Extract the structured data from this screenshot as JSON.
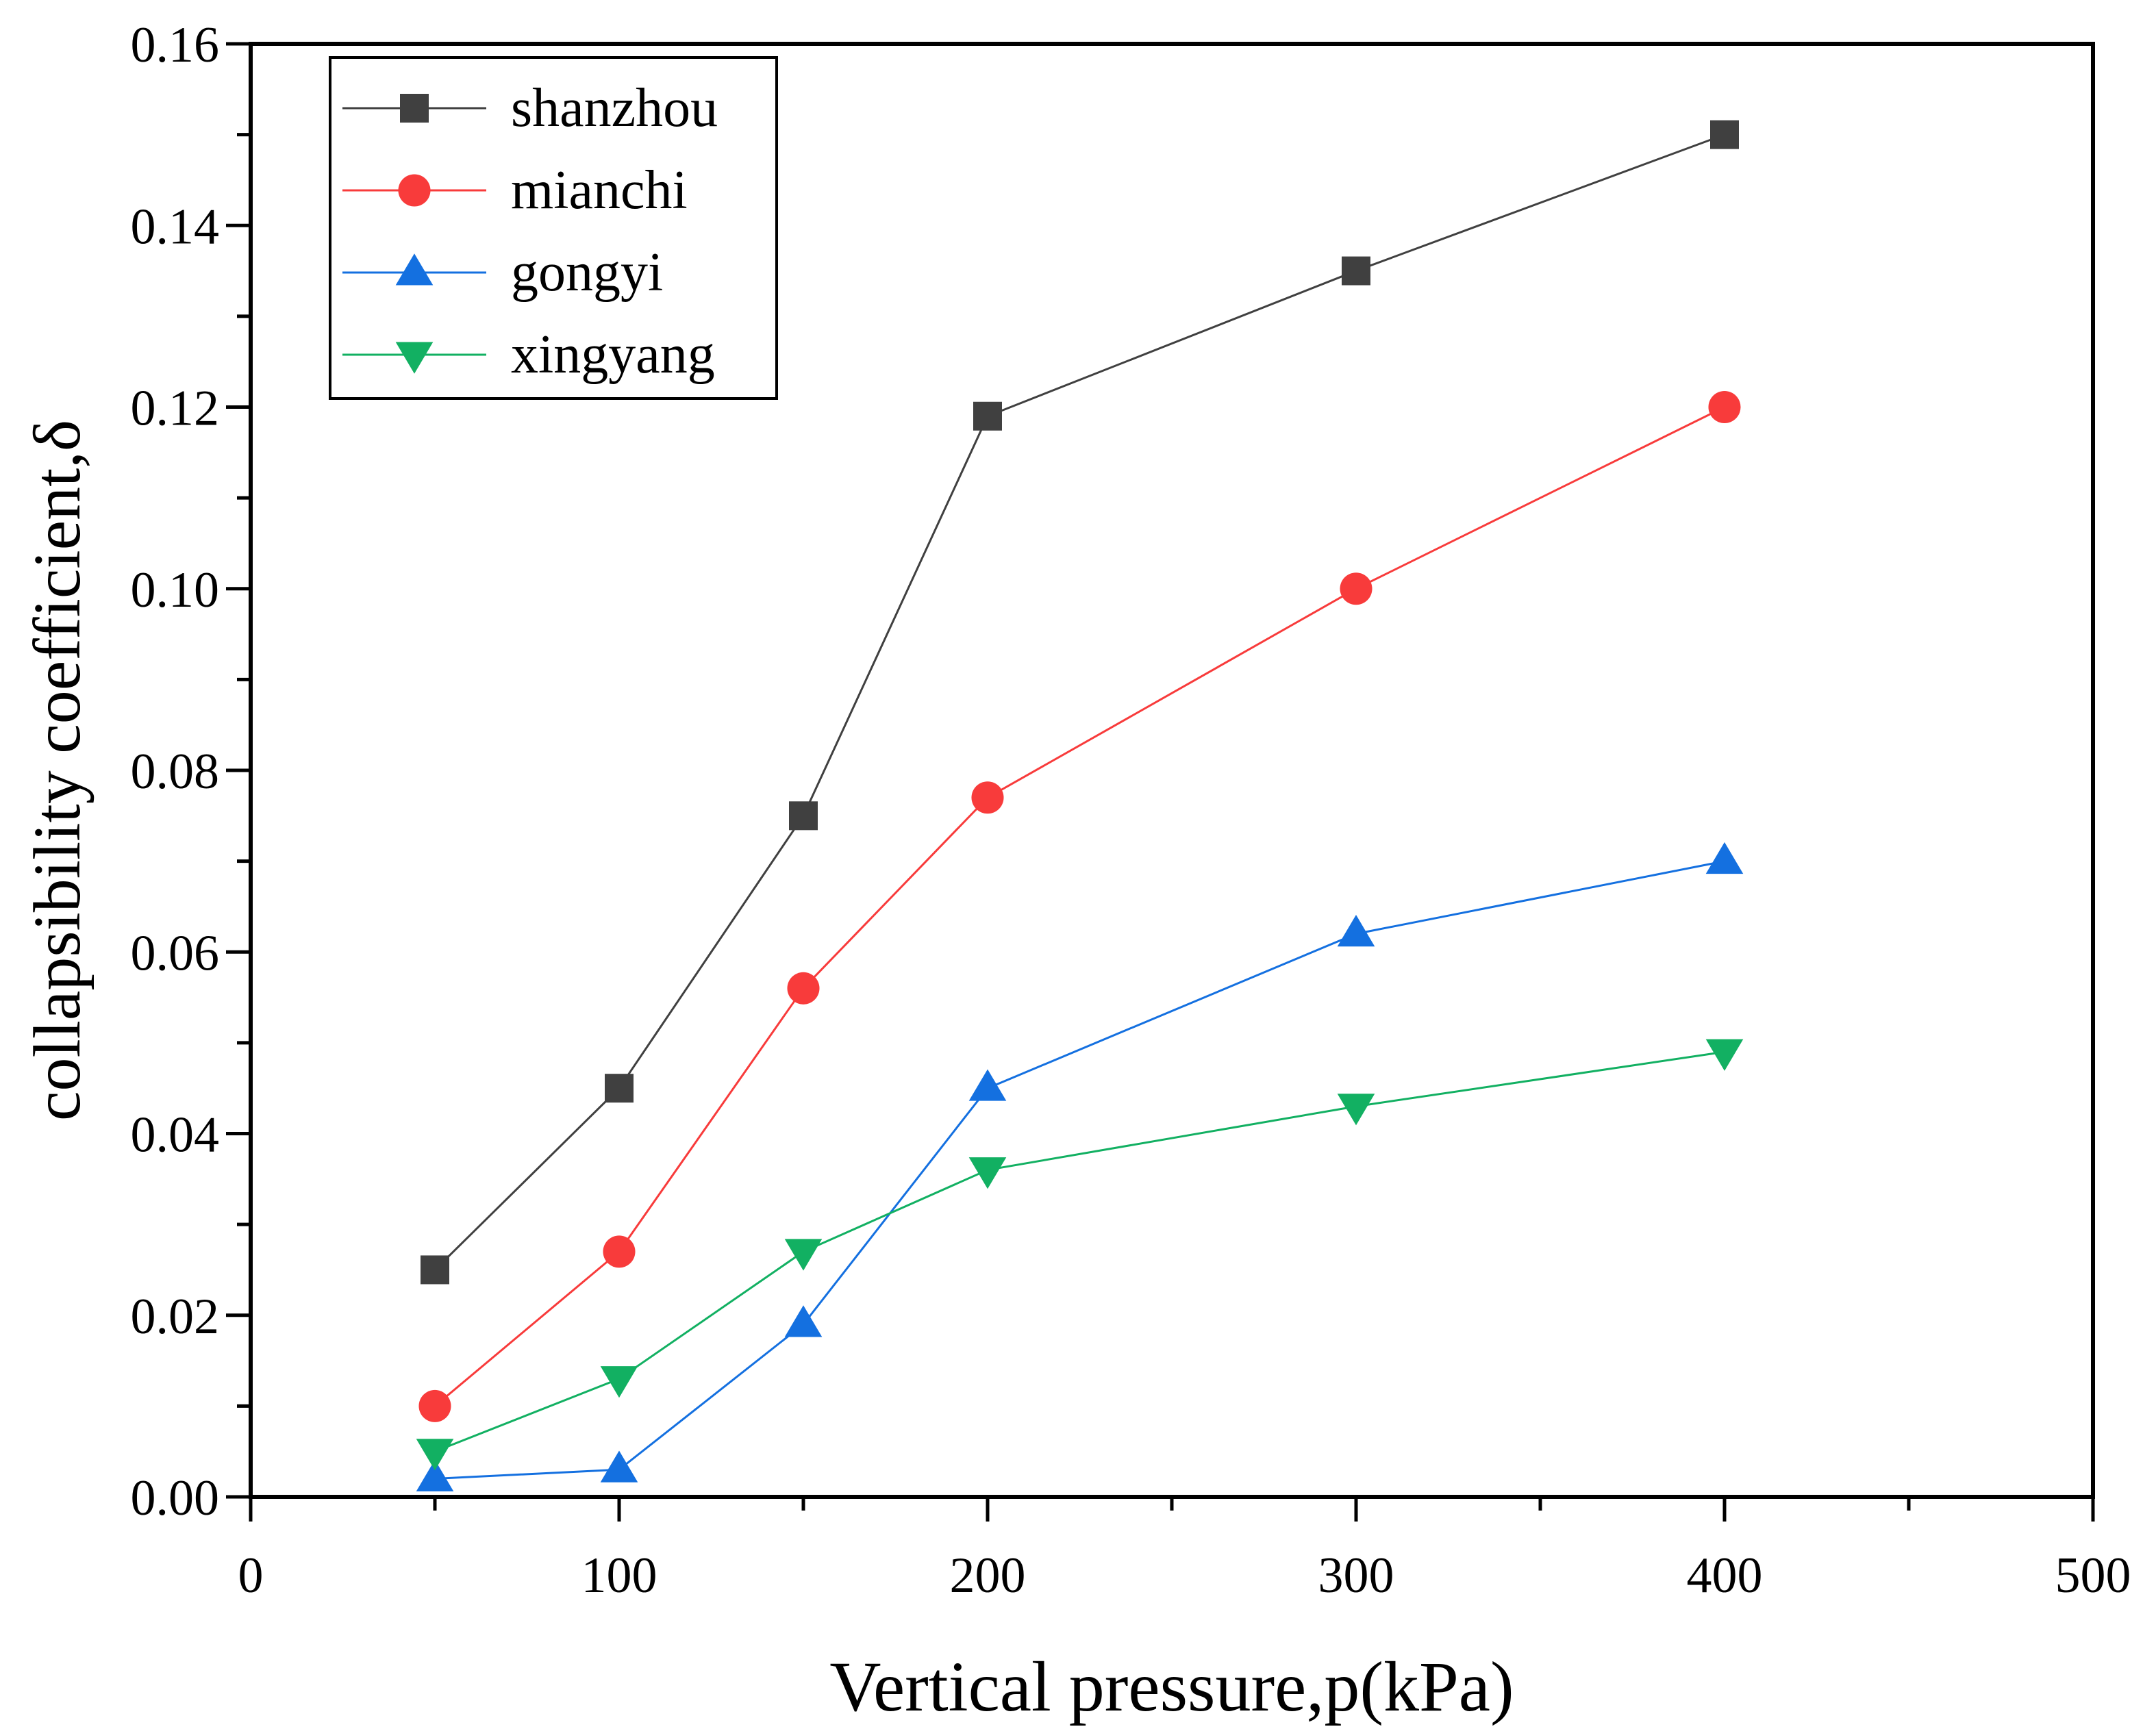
{
  "chart_data": {
    "type": "line",
    "title": "",
    "xlabel": "Vertical pressure,p(kPa)",
    "ylabel": "collapsibility coefficient,δ",
    "xlim": [
      0,
      500
    ],
    "ylim": [
      0,
      0.16
    ],
    "x_major_ticks": [
      0,
      100,
      200,
      300,
      400,
      500
    ],
    "x_tick_labels": [
      "0",
      "100",
      "200",
      "300",
      "400",
      "500"
    ],
    "x_minor_ticks": [
      50,
      150,
      250,
      350,
      450
    ],
    "y_major_ticks": [
      0,
      0.02,
      0.04,
      0.06,
      0.08,
      0.1,
      0.12,
      0.14,
      0.16
    ],
    "y_tick_labels": [
      "0.00",
      "0.02",
      "0.04",
      "0.06",
      "0.08",
      "0.10",
      "0.12",
      "0.14",
      "0.16"
    ],
    "y_minor_ticks": [
      0.01,
      0.03,
      0.05,
      0.07,
      0.09,
      0.11,
      0.13,
      0.15
    ],
    "grid": false,
    "legend_position": "top-left",
    "x": [
      50,
      100,
      150,
      200,
      300,
      400
    ],
    "series": [
      {
        "name": "shanzhou",
        "color": "#404040",
        "marker": "square",
        "values": [
          0.025,
          0.045,
          0.075,
          0.119,
          0.135,
          0.15
        ]
      },
      {
        "name": "mianchi",
        "color": "#f83b3b",
        "marker": "circle",
        "values": [
          0.01,
          0.027,
          0.056,
          0.077,
          0.1,
          0.12
        ]
      },
      {
        "name": "gongyi",
        "color": "#1470e0",
        "marker": "triangle-up",
        "values": [
          0.002,
          0.003,
          0.019,
          0.045,
          0.062,
          0.07
        ]
      },
      {
        "name": "xingyang",
        "color": "#12b062",
        "marker": "triangle-down",
        "values": [
          0.005,
          0.013,
          0.027,
          0.036,
          0.043,
          0.049
        ]
      }
    ]
  }
}
